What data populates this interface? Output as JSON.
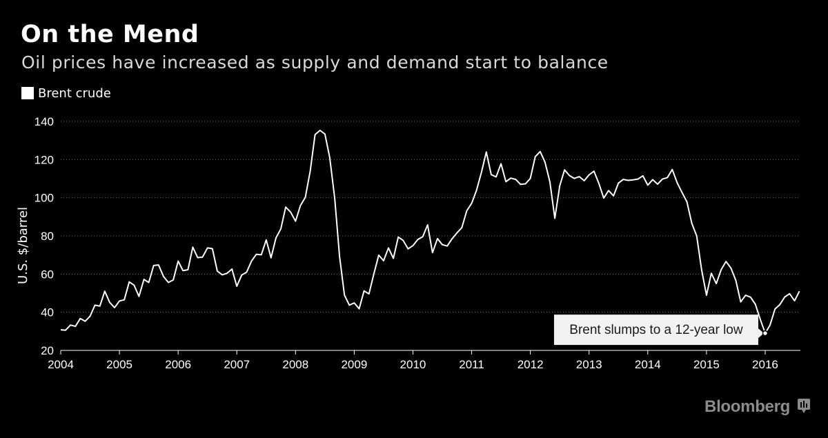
{
  "header": {
    "title": "On the Mend",
    "subtitle": "Oil prices have increased as supply and demand start to balance"
  },
  "legend": {
    "label": "Brent crude",
    "color": "#ffffff"
  },
  "footer": {
    "brand": "Bloomberg",
    "brand_icon": "bloomberg-mark-icon"
  },
  "chart_data": {
    "type": "line",
    "title": "On the Mend",
    "subtitle": "Oil prices have increased as supply and demand start to balance",
    "xlabel": "",
    "ylabel": "U.S. $/barrel",
    "xlim": [
      2004.0,
      2016.6
    ],
    "ylim": [
      20,
      140
    ],
    "yticks": [
      20,
      40,
      60,
      80,
      100,
      120,
      140
    ],
    "xticks": [
      2004,
      2005,
      2006,
      2007,
      2008,
      2009,
      2010,
      2011,
      2012,
      2013,
      2014,
      2015,
      2016
    ],
    "grid": "horizontal dotted",
    "legend_position": "top-left",
    "series": [
      {
        "name": "Brent crude",
        "color": "#ffffff",
        "x": [
          2004.0,
          2004.083,
          2004.167,
          2004.25,
          2004.333,
          2004.417,
          2004.5,
          2004.583,
          2004.667,
          2004.75,
          2004.833,
          2004.917,
          2005.0,
          2005.083,
          2005.167,
          2005.25,
          2005.333,
          2005.417,
          2005.5,
          2005.583,
          2005.667,
          2005.75,
          2005.833,
          2005.917,
          2006.0,
          2006.083,
          2006.167,
          2006.25,
          2006.333,
          2006.417,
          2006.5,
          2006.583,
          2006.667,
          2006.75,
          2006.833,
          2006.917,
          2007.0,
          2007.083,
          2007.167,
          2007.25,
          2007.333,
          2007.417,
          2007.5,
          2007.583,
          2007.667,
          2007.75,
          2007.833,
          2007.917,
          2008.0,
          2008.083,
          2008.167,
          2008.25,
          2008.333,
          2008.417,
          2008.5,
          2008.583,
          2008.667,
          2008.75,
          2008.833,
          2008.917,
          2009.0,
          2009.083,
          2009.167,
          2009.25,
          2009.333,
          2009.417,
          2009.5,
          2009.583,
          2009.667,
          2009.75,
          2009.833,
          2009.917,
          2010.0,
          2010.083,
          2010.167,
          2010.25,
          2010.333,
          2010.417,
          2010.5,
          2010.583,
          2010.667,
          2010.75,
          2010.833,
          2010.917,
          2011.0,
          2011.083,
          2011.167,
          2011.25,
          2011.333,
          2011.417,
          2011.5,
          2011.583,
          2011.667,
          2011.75,
          2011.833,
          2011.917,
          2012.0,
          2012.083,
          2012.167,
          2012.25,
          2012.333,
          2012.417,
          2012.5,
          2012.583,
          2012.667,
          2012.75,
          2012.833,
          2012.917,
          2013.0,
          2013.083,
          2013.167,
          2013.25,
          2013.333,
          2013.417,
          2013.5,
          2013.583,
          2013.667,
          2013.75,
          2013.833,
          2013.917,
          2014.0,
          2014.083,
          2014.167,
          2014.25,
          2014.333,
          2014.417,
          2014.5,
          2014.583,
          2014.667,
          2014.75,
          2014.833,
          2014.917,
          2015.0,
          2015.083,
          2015.167,
          2015.25,
          2015.333,
          2015.417,
          2015.5,
          2015.583,
          2015.667,
          2015.75,
          2015.833,
          2015.917,
          2016.0,
          2016.083,
          2016.167,
          2016.25,
          2016.333,
          2016.417,
          2016.5,
          2016.583
        ],
        "values": [
          30.8,
          30.6,
          33.3,
          32.6,
          36.7,
          35.3,
          37.9,
          43.7,
          43.2,
          51.0,
          45.2,
          42.4,
          45.9,
          46.5,
          55.9,
          54.2,
          48.3,
          57.2,
          55.6,
          64.5,
          64.8,
          58.8,
          55.6,
          56.9,
          66.8,
          61.8,
          62.3,
          74.1,
          68.6,
          68.9,
          73.7,
          73.3,
          61.6,
          59.6,
          60.4,
          62.6,
          53.6,
          59.5,
          61.0,
          66.8,
          70.4,
          70.1,
          77.9,
          68.5,
          79.0,
          83.7,
          95.1,
          92.4,
          87.7,
          95.9,
          100.2,
          114.0,
          133.1,
          135.3,
          133.4,
          121.0,
          99.7,
          69.3,
          49.0,
          43.7,
          44.9,
          41.8,
          51.2,
          49.6,
          59.9,
          69.9,
          67.0,
          73.7,
          68.2,
          79.4,
          77.6,
          73.2,
          74.9,
          78.1,
          79.6,
          85.8,
          71.2,
          78.6,
          75.4,
          74.7,
          78.5,
          81.6,
          84.3,
          93.2,
          97.1,
          103.9,
          113.4,
          124.0,
          112.1,
          110.9,
          117.8,
          108.4,
          110.3,
          109.6,
          107.0,
          107.3,
          110.1,
          121.5,
          124.2,
          118.6,
          108.2,
          89.2,
          106.2,
          114.6,
          111.6,
          110.1,
          111.1,
          108.9,
          112.0,
          113.9,
          107.5,
          99.8,
          103.8,
          101.0,
          107.7,
          109.6,
          109.1,
          109.4,
          109.8,
          111.5,
          106.6,
          109.5,
          107.1,
          109.8,
          110.5,
          114.8,
          107.9,
          102.8,
          97.9,
          86.6,
          80.0,
          62.3,
          48.9,
          60.4,
          55.0,
          62.3,
          66.6,
          63.1,
          56.7,
          45.4,
          48.9,
          47.9,
          44.2,
          36.2,
          29.0,
          33.3,
          41.7,
          44.0,
          48.0,
          49.7,
          46.0,
          51.0
        ],
        "point_annotations": [
          {
            "x": 2016.0,
            "y": 29.0,
            "text": "Brent slumps to a 12-year low"
          }
        ]
      }
    ]
  }
}
